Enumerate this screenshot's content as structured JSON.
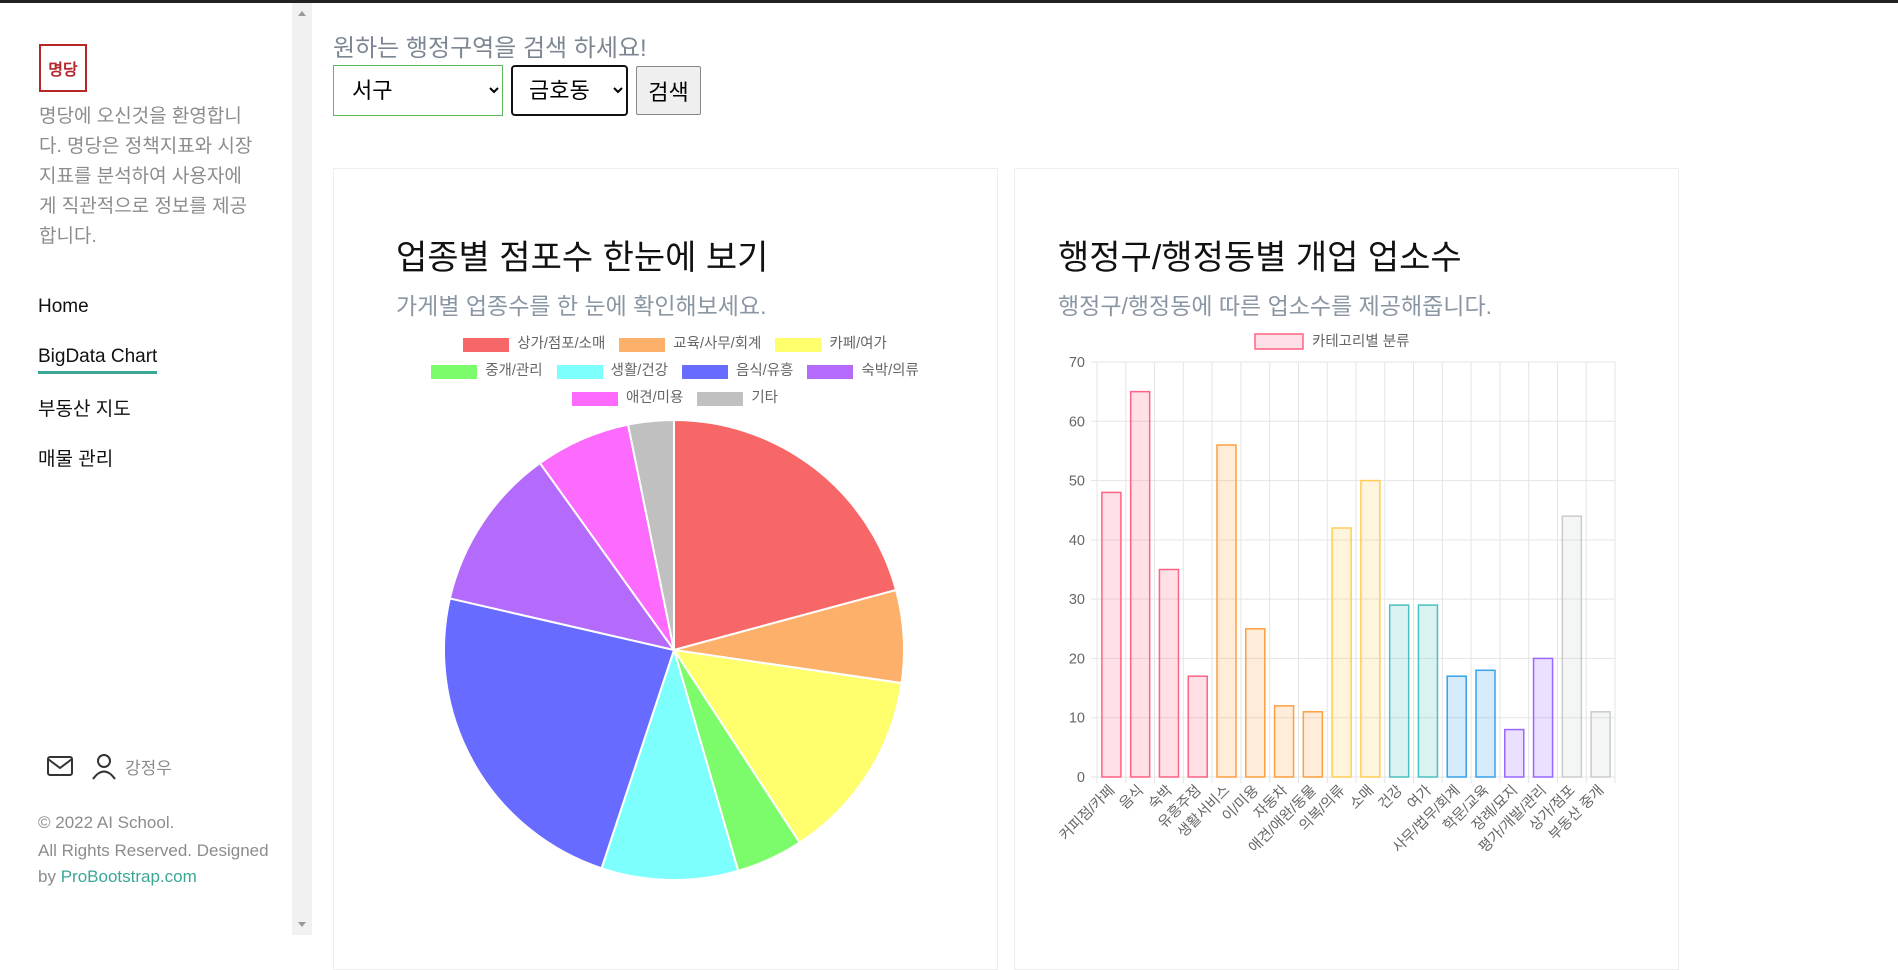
{
  "sidebar": {
    "logo": "명당",
    "description": "명당에 오신것을 환영합니다. 명당은 정책지표와 시장지표를 분석하여 사용자에게 직관적으로 정보를 제공합니다.",
    "nav": [
      "Home",
      "BigData Chart",
      "부동산 지도",
      "매물 관리"
    ],
    "active_nav": 1,
    "user": "강정우",
    "copyright": "© 2022 AI School.",
    "rights": "All Rights Reserved. Designed",
    "by": "by",
    "link": "ProBootstrap.com"
  },
  "search": {
    "heading": "원하는 행정구역을 검색 하세요!",
    "district": "서구",
    "dong": "금호동",
    "button": "검색"
  },
  "chart_data": [
    {
      "type": "pie",
      "title": "업종별 점포수 한눈에 보기",
      "subtitle": "가게별 업종수를 한 눈에 확인해보세요.",
      "categories": [
        "상가/점포/소매",
        "교육/사무/회계",
        "카페/여가",
        "중개/관리",
        "생활/건강",
        "음식/유흥",
        "숙박/의류",
        "애견/미용",
        "기타"
      ],
      "values": [
        20.8,
        6.5,
        13.5,
        4.7,
        9.6,
        23.5,
        11.5,
        6.7,
        3.2
      ],
      "colors": [
        "#f76767",
        "#fdb069",
        "#ffff6e",
        "#7cfc6a",
        "#7dfffe",
        "#676bff",
        "#b46bfb",
        "#fd6afe",
        "#c0c0c0"
      ]
    },
    {
      "type": "bar",
      "title": "행정구/행정동별 개업 업소수",
      "subtitle": "행정구/행정동에 따른 업소수를 제공해줍니다.",
      "categories": [
        "커피점/카페",
        "음식",
        "숙박",
        "유흥주점",
        "생활서비스",
        "이/미용",
        "자동차",
        "애견/애완/동물",
        "의복/의류",
        "소매",
        "건강",
        "여가",
        "사무/법무/회계",
        "학문/교육",
        "장례/묘지",
        "평가/개발/관리",
        "상가/점포",
        "부동산 중개"
      ],
      "series": [
        {
          "name": "카테고리별 분류",
          "color": [
            "#ff6384",
            "#ff6384",
            "#ff6384",
            "#ff6384",
            "#ff9f40",
            "#ff9f40",
            "#ff9f40",
            "#ff9f40",
            "#ffcd56",
            "#ffcd56",
            "#4bc0c0",
            "#4bc0c0",
            "#36a2eb",
            "#36a2eb",
            "#9966ff",
            "#9966ff",
            "#c9cbcf",
            "#c9cbcf"
          ],
          "values": [
            48,
            65,
            35,
            17,
            56,
            25,
            12,
            11,
            42,
            50,
            29,
            29,
            17,
            18,
            8,
            20,
            44,
            11
          ]
        }
      ],
      "fill_opacity": 0.2,
      "ylim": [
        0,
        70
      ],
      "yticks": [
        0,
        10,
        20,
        30,
        40,
        50,
        60,
        70
      ],
      "grid": true
    }
  ]
}
